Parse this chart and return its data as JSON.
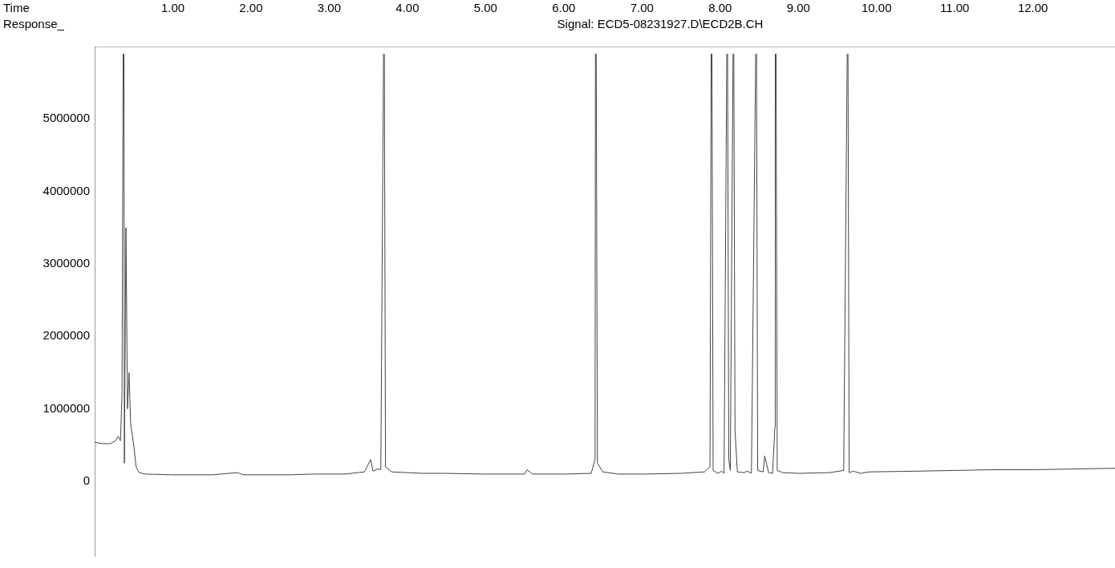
{
  "chart_data": {
    "type": "line",
    "title": "Signal: ECD5-08231927.D\\ECD2B.CH",
    "xlabel": "Time",
    "ylabel": "Response_",
    "x": [
      0,
      0.1,
      0.2,
      0.27,
      0.3,
      0.33,
      0.35,
      0.365,
      0.37,
      0.375,
      0.38,
      0.4,
      0.42,
      0.44,
      0.46,
      0.5,
      0.53,
      0.57,
      0.65,
      1.0,
      1.5,
      1.83,
      1.9,
      2.5,
      2.8,
      3.2,
      3.45,
      3.53,
      3.56,
      3.62,
      3.66,
      3.695,
      3.7,
      3.705,
      3.72,
      3.8,
      4.2,
      4.5,
      5.0,
      5.5,
      5.53,
      5.6,
      6.0,
      6.35,
      6.4,
      6.405,
      6.41,
      6.415,
      6.43,
      6.5,
      6.7,
      7.0,
      7.5,
      7.8,
      7.87,
      7.885,
      7.89,
      7.895,
      7.91,
      7.97,
      8.02,
      8.05,
      8.085,
      8.09,
      8.095,
      8.11,
      8.13,
      8.165,
      8.17,
      8.175,
      8.19,
      8.22,
      8.3,
      8.35,
      8.4,
      8.455,
      8.46,
      8.465,
      8.48,
      8.55,
      8.57,
      8.62,
      8.67,
      8.7,
      8.705,
      8.71,
      8.715,
      8.73,
      8.8,
      9.0,
      9.4,
      9.58,
      9.625,
      9.63,
      9.635,
      9.65,
      9.7,
      9.8,
      9.9,
      10.5,
      11.0,
      11.5,
      12.0,
      12.5,
      13.05
    ],
    "series": [
      {
        "color": "#444444",
        "values": [
          540000,
          520000,
          520000,
          560000,
          620000,
          560000,
          1200000,
          5900000,
          null,
          5900000,
          250000,
          3500000,
          1000000,
          1500000,
          800000,
          500000,
          200000,
          120000,
          100000,
          90000,
          90000,
          120000,
          90000,
          90000,
          100000,
          100000,
          130000,
          300000,
          140000,
          170000,
          160000,
          5900000,
          null,
          5900000,
          200000,
          130000,
          110000,
          110000,
          100000,
          100000,
          160000,
          100000,
          100000,
          110000,
          300000,
          5900000,
          null,
          5900000,
          250000,
          130000,
          100000,
          100000,
          110000,
          130000,
          200000,
          5900000,
          null,
          5900000,
          150000,
          110000,
          140000,
          110000,
          5900000,
          null,
          5900000,
          300000,
          150000,
          5900000,
          null,
          5900000,
          700000,
          130000,
          120000,
          140000,
          110000,
          5900000,
          null,
          5900000,
          150000,
          130000,
          350000,
          120000,
          110000,
          750000,
          5900000,
          null,
          5900000,
          150000,
          120000,
          110000,
          120000,
          150000,
          5900000,
          null,
          5900000,
          120000,
          140000,
          110000,
          130000,
          140000,
          150000,
          160000,
          160000,
          170000,
          180000
        ]
      }
    ],
    "xlim": [
      0,
      13.05
    ],
    "xticks": [
      {
        "value": 1,
        "label": "1.00"
      },
      {
        "value": 2,
        "label": "2.00"
      },
      {
        "value": 3,
        "label": "3.00"
      },
      {
        "value": 4,
        "label": "4.00"
      },
      {
        "value": 5,
        "label": "5.00"
      },
      {
        "value": 6,
        "label": "6.00"
      },
      {
        "value": 7,
        "label": "7.00"
      },
      {
        "value": 8,
        "label": "8.00"
      },
      {
        "value": 9,
        "label": "9.00"
      },
      {
        "value": 10,
        "label": "10.00"
      },
      {
        "value": 11,
        "label": "11.00"
      },
      {
        "value": 12,
        "label": "12.00"
      }
    ],
    "ylim": [
      -1030000,
      6000000
    ],
    "yticks": [
      0,
      1000000,
      2000000,
      3000000,
      4000000,
      5000000
    ],
    "grid": false,
    "legend": false,
    "marker": "none",
    "line_style": "solid"
  }
}
